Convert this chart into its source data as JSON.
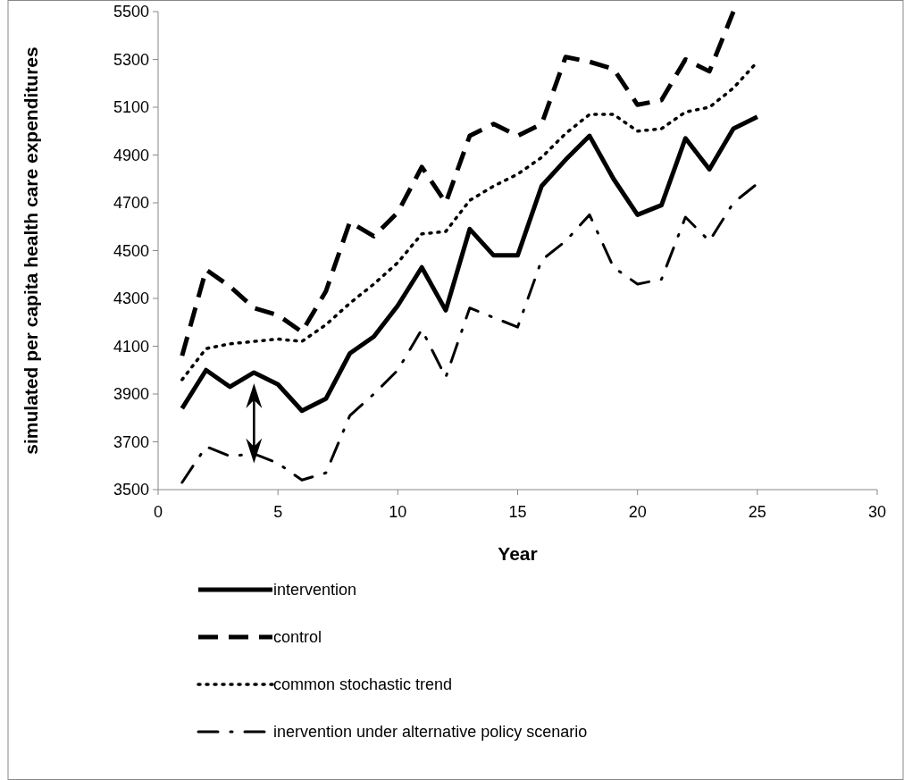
{
  "chart_data": {
    "type": "line",
    "xlabel": "Year",
    "ylabel": "simulated per capita health care expenditures",
    "x": [
      1,
      2,
      3,
      4,
      5,
      6,
      7,
      8,
      9,
      10,
      11,
      12,
      13,
      14,
      15,
      16,
      17,
      18,
      19,
      20,
      21,
      22,
      23,
      24,
      25
    ],
    "xlim": [
      0,
      30
    ],
    "xticks": [
      0,
      5,
      10,
      15,
      20,
      25,
      30
    ],
    "ylim": [
      3500,
      5500
    ],
    "yticks": [
      3500,
      3700,
      3900,
      4100,
      4300,
      4500,
      4700,
      4900,
      5100,
      5300,
      5500
    ],
    "legend": "bottom",
    "grid": false,
    "marker": "none",
    "series": [
      {
        "name": "intervention",
        "color": "#000000",
        "line_style": "solid",
        "values": [
          3840,
          4000,
          3930,
          3990,
          3940,
          3830,
          3880,
          4070,
          4140,
          4270,
          4430,
          4250,
          4590,
          4480,
          4480,
          4770,
          4880,
          4980,
          4800,
          4650,
          4690,
          4970,
          4840,
          5010,
          5060
        ]
      },
      {
        "name": "control",
        "color": "#000000",
        "line_style": "dashed",
        "values": [
          4060,
          4420,
          4350,
          4260,
          4230,
          4160,
          4330,
          4620,
          4560,
          4660,
          4850,
          4700,
          4980,
          5030,
          4980,
          5030,
          5310,
          5290,
          5260,
          5110,
          5130,
          5300,
          5250,
          5500,
          null
        ]
      },
      {
        "name": "common stochastic trend",
        "color": "#000000",
        "line_style": "dotted",
        "values": [
          3960,
          4090,
          4110,
          4120,
          4130,
          4120,
          4190,
          4280,
          4360,
          4450,
          4570,
          4580,
          4710,
          4770,
          4820,
          4890,
          4990,
          5070,
          5070,
          5000,
          5010,
          5080,
          5100,
          5180,
          5290
        ]
      },
      {
        "name": "inervention under alternative policy scenario",
        "color": "#000000",
        "line_style": "dashdot",
        "values": [
          3530,
          3680,
          3640,
          3650,
          3610,
          3540,
          3570,
          3810,
          3900,
          4000,
          4170,
          3970,
          4260,
          4220,
          4180,
          4460,
          4540,
          4650,
          4430,
          4360,
          4380,
          4640,
          4540,
          4700,
          4780
        ]
      }
    ]
  }
}
